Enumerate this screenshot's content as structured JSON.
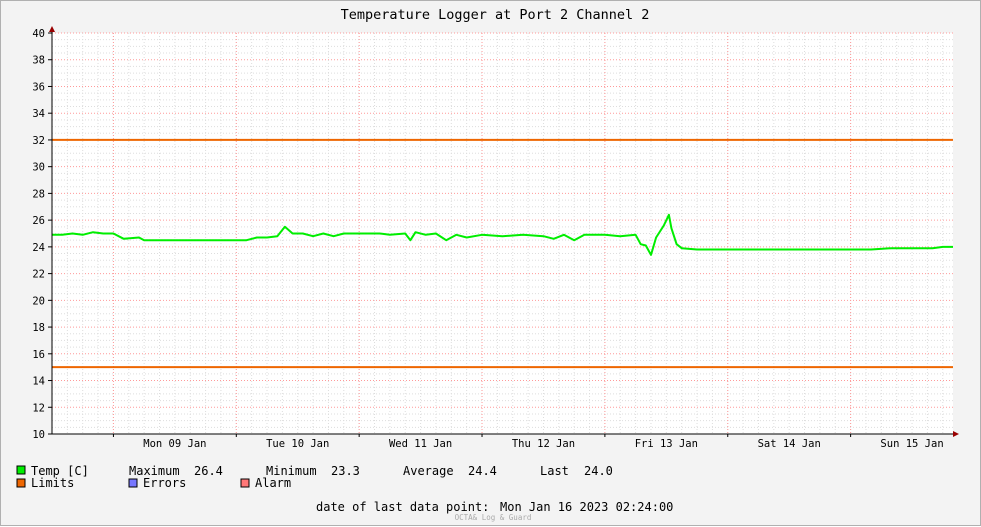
{
  "chart_data": {
    "type": "line",
    "title": "Temperature Logger at Port 2 Channel 2",
    "ylim": [
      10,
      40
    ],
    "yticks": [
      10,
      12,
      14,
      16,
      18,
      20,
      22,
      24,
      26,
      28,
      30,
      32,
      34,
      36,
      38,
      40
    ],
    "xlim": [
      "2023-01-08 12:00",
      "2023-01-15 20:00"
    ],
    "xtick_labels": [
      "Mon 09 Jan",
      "Tue 10 Jan",
      "Wed 11 Jan",
      "Thu 12 Jan",
      "Fri 13 Jan",
      "Sat 14 Jan",
      "Sun 15 Jan"
    ],
    "day_boundaries": [
      "2023-01-09",
      "2023-01-10",
      "2023-01-11",
      "2023-01-12",
      "2023-01-13",
      "2023-01-14",
      "2023-01-15"
    ],
    "grid": true,
    "series": [
      {
        "name": "Temp [C]",
        "color": "#00ee00",
        "points": [
          [
            "2023-01-08 12:00",
            24.9
          ],
          [
            "2023-01-08 14:00",
            24.9
          ],
          [
            "2023-01-08 16:00",
            25.0
          ],
          [
            "2023-01-08 18:00",
            24.9
          ],
          [
            "2023-01-08 20:00",
            25.1
          ],
          [
            "2023-01-08 22:00",
            25.0
          ],
          [
            "2023-01-09 00:00",
            25.0
          ],
          [
            "2023-01-09 02:00",
            24.6
          ],
          [
            "2023-01-09 05:00",
            24.7
          ],
          [
            "2023-01-09 06:00",
            24.5
          ],
          [
            "2023-01-09 10:00",
            24.5
          ],
          [
            "2023-01-09 16:00",
            24.5
          ],
          [
            "2023-01-10 00:00",
            24.5
          ],
          [
            "2023-01-10 02:00",
            24.5
          ],
          [
            "2023-01-10 04:00",
            24.7
          ],
          [
            "2023-01-10 06:00",
            24.7
          ],
          [
            "2023-01-10 08:00",
            24.8
          ],
          [
            "2023-01-10 09:30",
            25.5
          ],
          [
            "2023-01-10 11:00",
            25.0
          ],
          [
            "2023-01-10 13:00",
            25.0
          ],
          [
            "2023-01-10 15:00",
            24.8
          ],
          [
            "2023-01-10 17:00",
            25.0
          ],
          [
            "2023-01-10 19:00",
            24.8
          ],
          [
            "2023-01-10 21:00",
            25.0
          ],
          [
            "2023-01-11 00:00",
            25.0
          ],
          [
            "2023-01-11 04:00",
            25.0
          ],
          [
            "2023-01-11 06:00",
            24.9
          ],
          [
            "2023-01-11 09:00",
            25.0
          ],
          [
            "2023-01-11 10:00",
            24.5
          ],
          [
            "2023-01-11 11:00",
            25.1
          ],
          [
            "2023-01-11 13:00",
            24.9
          ],
          [
            "2023-01-11 15:00",
            25.0
          ],
          [
            "2023-01-11 17:00",
            24.5
          ],
          [
            "2023-01-11 19:00",
            24.9
          ],
          [
            "2023-01-11 21:00",
            24.7
          ],
          [
            "2023-01-12 00:00",
            24.9
          ],
          [
            "2023-01-12 04:00",
            24.8
          ],
          [
            "2023-01-12 08:00",
            24.9
          ],
          [
            "2023-01-12 12:00",
            24.8
          ],
          [
            "2023-01-12 14:00",
            24.6
          ],
          [
            "2023-01-12 16:00",
            24.9
          ],
          [
            "2023-01-12 18:00",
            24.5
          ],
          [
            "2023-01-12 20:00",
            24.9
          ],
          [
            "2023-01-13 00:00",
            24.9
          ],
          [
            "2023-01-13 03:00",
            24.8
          ],
          [
            "2023-01-13 06:00",
            24.9
          ],
          [
            "2023-01-13 07:00",
            24.2
          ],
          [
            "2023-01-13 08:00",
            24.1
          ],
          [
            "2023-01-13 09:00",
            23.4
          ],
          [
            "2023-01-13 10:00",
            24.7
          ],
          [
            "2023-01-13 11:30",
            25.6
          ],
          [
            "2023-01-13 12:30",
            26.4
          ],
          [
            "2023-01-13 13:00",
            25.4
          ],
          [
            "2023-01-13 14:00",
            24.2
          ],
          [
            "2023-01-13 15:00",
            23.9
          ],
          [
            "2023-01-13 18:00",
            23.8
          ],
          [
            "2023-01-14 00:00",
            23.8
          ],
          [
            "2023-01-14 06:00",
            23.8
          ],
          [
            "2023-01-14 12:00",
            23.8
          ],
          [
            "2023-01-14 18:00",
            23.8
          ],
          [
            "2023-01-15 00:00",
            23.8
          ],
          [
            "2023-01-15 04:00",
            23.8
          ],
          [
            "2023-01-15 08:00",
            23.9
          ],
          [
            "2023-01-15 12:00",
            23.9
          ],
          [
            "2023-01-15 16:00",
            23.9
          ],
          [
            "2023-01-15 18:00",
            24.0
          ],
          [
            "2023-01-15 20:00",
            24.0
          ]
        ]
      },
      {
        "name": "Limits",
        "color": "#ee6600",
        "values": [
          32,
          15
        ]
      }
    ]
  },
  "legend": {
    "temp_label": "Temp [C]",
    "temp_color": "#00ee00",
    "limits_label": "Limits",
    "limits_color": "#ee6600",
    "errors_label": "Errors",
    "errors_color": "#7777ff",
    "alarm_label": "Alarm",
    "alarm_color": "#ff7777",
    "maximum_label": "Maximum",
    "maximum_value": "26.4",
    "minimum_label": "Minimum",
    "minimum_value": "23.3",
    "average_label": "Average",
    "average_value": "24.4",
    "last_label": "Last",
    "last_value": "24.0"
  },
  "footer": {
    "last_point_label": "date of last data point:",
    "last_point_value": "Mon Jan 16 2023 02:24:00",
    "watermark": "OCTA& Log & Guard"
  },
  "colors": {
    "background": "#f3f3f3",
    "plot_background": "#ffffff",
    "minor_grid": "#dddddd",
    "major_grid": "#ff9999",
    "axis": "#000000",
    "arrow": "#990000"
  }
}
